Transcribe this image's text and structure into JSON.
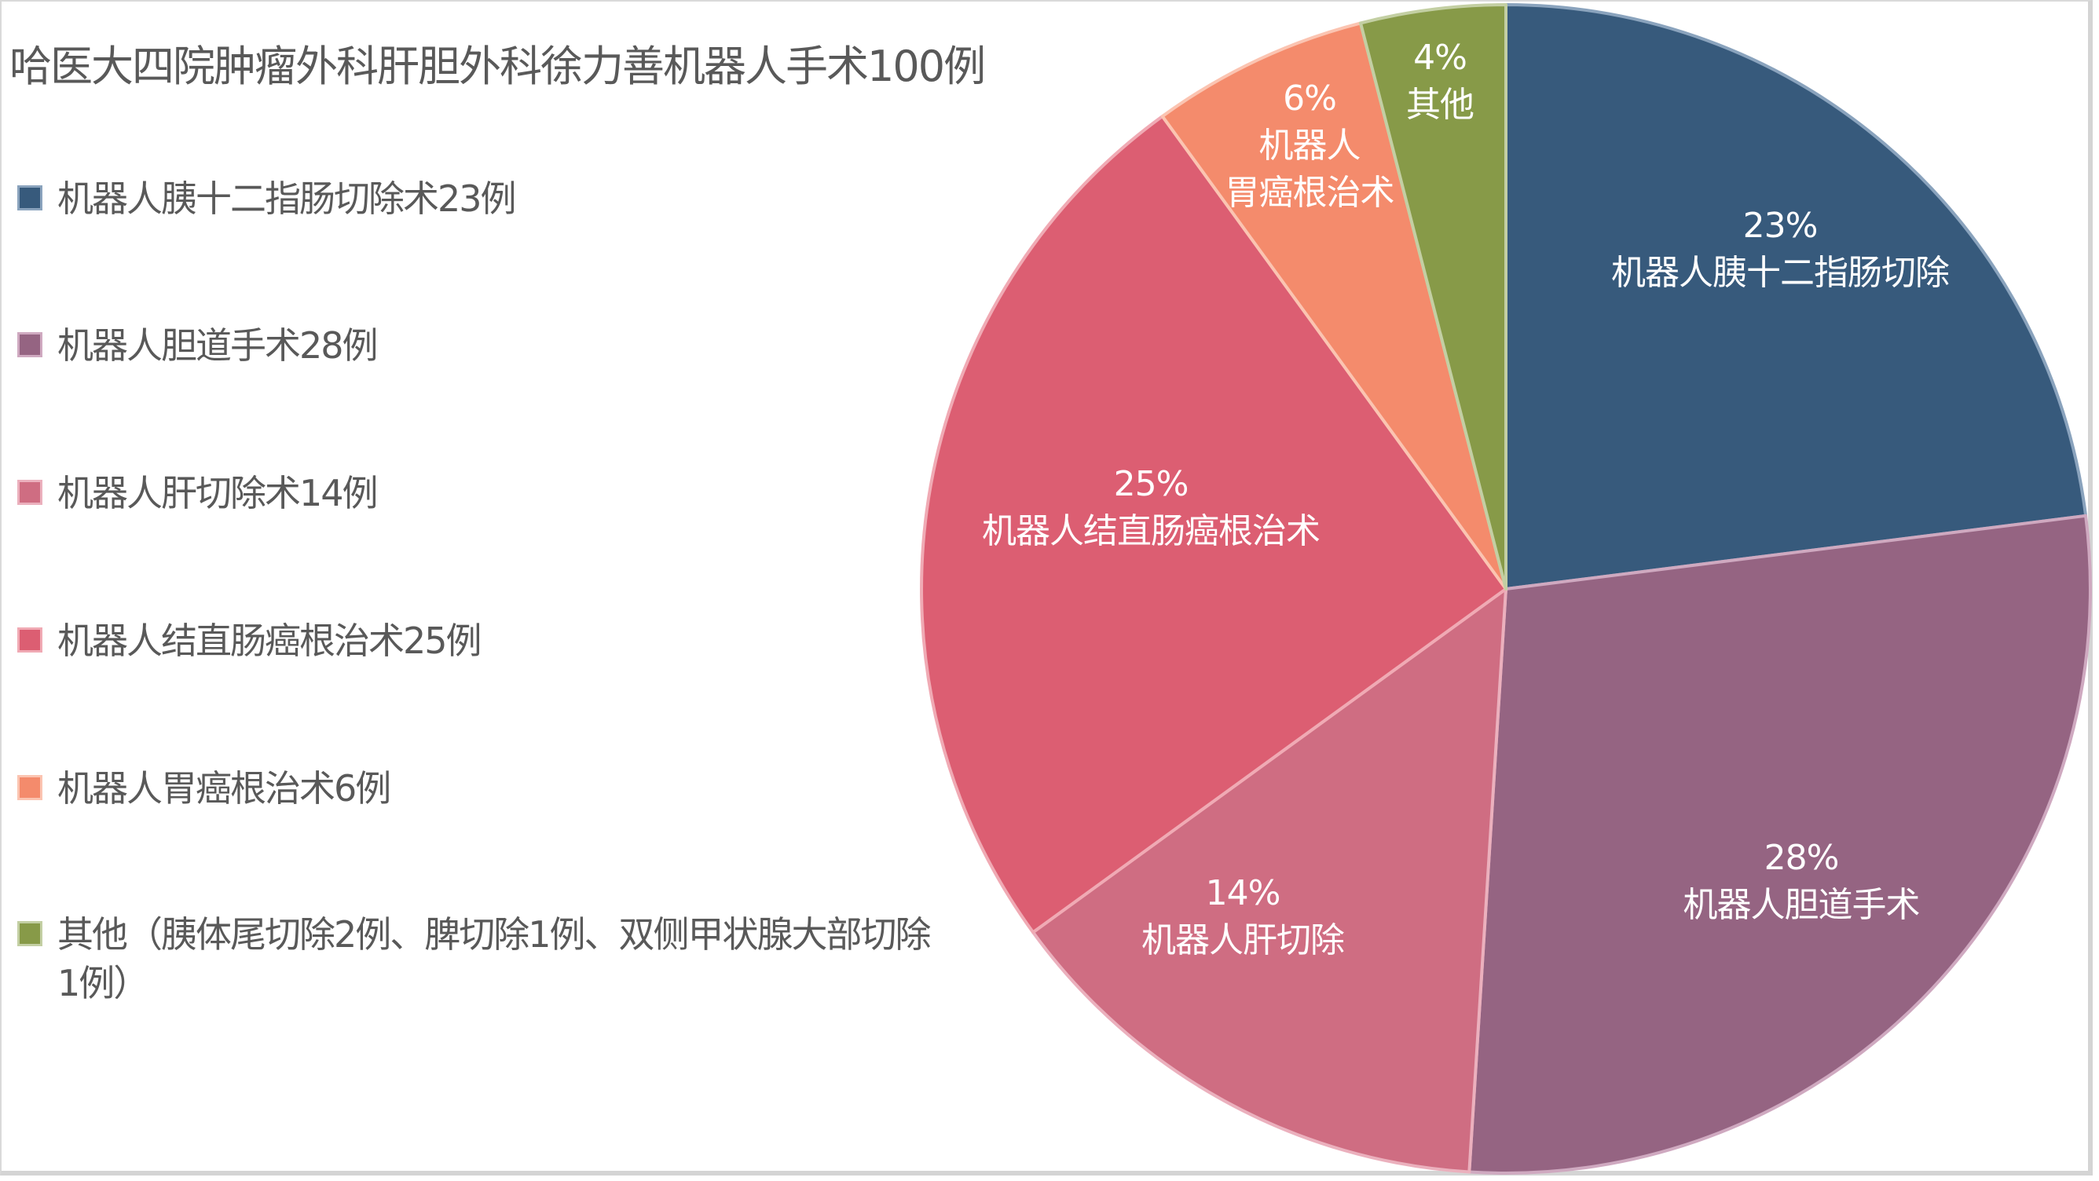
{
  "chart_data": {
    "type": "pie",
    "title": "哈医大四院肿瘤外科肝胆外科徐力善机器人手术100例",
    "categories": [
      "机器人胰十二指肠切除术23例",
      "机器人胆道手术28例",
      "机器人肝切除术14例",
      "机器人结直肠癌根治术25例",
      "机器人胃癌根治术6例",
      "其他（胰体尾切除2例、脾切除1例、双侧甲状腺大部切除1例）"
    ],
    "values": [
      23,
      28,
      14,
      25,
      6,
      4
    ],
    "percent_labels": [
      "23%",
      "28%",
      "14%",
      "25%",
      "6%",
      "4%"
    ],
    "slice_labels": [
      "机器人胰十二指肠切除",
      "机器人胆道手术",
      "机器人肝切除",
      "机器人结直肠癌根治术",
      "机器人胃癌根治术",
      "其他"
    ],
    "colors": [
      "#375a7c",
      "#956482",
      "#cf6d82",
      "#dc5e72",
      "#f48b6c",
      "#879a48"
    ],
    "border_colors": [
      "#8aa3bd",
      "#cfa9c0",
      "#ebb0bd",
      "#f0aab4",
      "#fbc4b1",
      "#c3cfa3"
    ],
    "legend_position": "left",
    "start_angle_deg": 0,
    "direction": "clockwise"
  },
  "legend": {
    "items": [
      {
        "label": "机器人胰十二指肠切除术23例",
        "color": "#375a7c"
      },
      {
        "label": "机器人胆道手术28例",
        "color": "#956482"
      },
      {
        "label": "机器人肝切除术14例",
        "color": "#cf6d82"
      },
      {
        "label": "机器人结直肠癌根治术25例",
        "color": "#dc5e72"
      },
      {
        "label": "机器人胃癌根治术6例",
        "color": "#f48b6c"
      },
      {
        "label": "其他（胰体尾切除2例、脾切除1例、双侧甲状腺大部切除1例）",
        "color": "#879a48"
      }
    ]
  },
  "labels": {
    "s0": {
      "pct": "23%",
      "name": "机器人胰十二指肠切除"
    },
    "s1": {
      "pct": "28%",
      "name": "机器人胆道手术"
    },
    "s2": {
      "pct": "14%",
      "name": "机器人肝切除"
    },
    "s3": {
      "pct": "25%",
      "name": "机器人结直肠癌根治术"
    },
    "s4": {
      "pct": "6%",
      "line1": "机器人",
      "line2": "胃癌根治术"
    },
    "s5": {
      "pct": "4%",
      "name": "其他"
    }
  }
}
